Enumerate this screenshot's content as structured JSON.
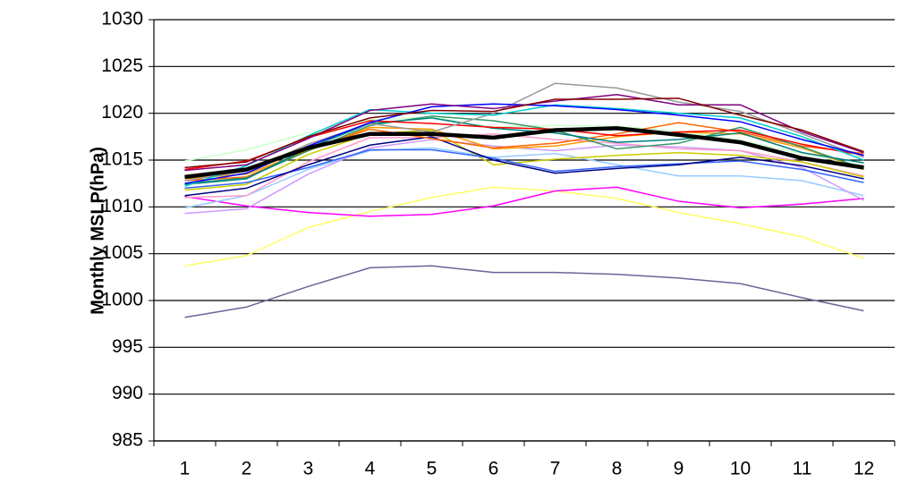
{
  "chart_data": {
    "type": "line",
    "y_label": "Monthly MSLP(hPa)",
    "categories": [
      "1",
      "2",
      "3",
      "4",
      "5",
      "6",
      "7",
      "8",
      "9",
      "10",
      "11",
      "12"
    ],
    "ylim": [
      985,
      1030
    ],
    "yticks": [
      985,
      990,
      995,
      1000,
      1005,
      1010,
      1015,
      1020,
      1025,
      1030
    ],
    "grid": true,
    "series": [
      {
        "color": "#666699",
        "width": 1.5,
        "values": [
          998.2,
          999.3,
          1001.5,
          1003.5,
          1003.7,
          1003.0,
          1003.0,
          1002.8,
          1002.4,
          1001.8,
          1000.3,
          998.9
        ]
      },
      {
        "color": "#ffff66",
        "width": 1.5,
        "values": [
          1003.7,
          1004.8,
          1007.8,
          1009.5,
          1011.0,
          1012.1,
          1011.7,
          1010.9,
          1009.4,
          1008.2,
          1006.8,
          1004.5
        ]
      },
      {
        "color": "#ff00ff",
        "width": 1.5,
        "values": [
          1011.1,
          1010.1,
          1009.4,
          1009.0,
          1009.2,
          1010.1,
          1011.7,
          1012.1,
          1010.6,
          1009.9,
          1010.3,
          1010.9
        ]
      },
      {
        "color": "#ccffcc",
        "width": 1.5,
        "values": [
          1014.9,
          1016.1,
          1017.9,
          1019.3,
          1019.6,
          1018.5,
          1018.7,
          1018.6,
          1018.1,
          1017.1,
          1015.7,
          1014.4
        ]
      },
      {
        "color": "#99ccff",
        "width": 1.5,
        "values": [
          1009.9,
          1011.2,
          1014.0,
          1016.0,
          1016.3,
          1015.3,
          1015.7,
          1014.5,
          1013.3,
          1013.3,
          1012.8,
          1011.2
        ]
      },
      {
        "color": "#cc99ff",
        "width": 1.5,
        "values": [
          1009.3,
          1009.8,
          1013.5,
          1016.3,
          1017.2,
          1016.5,
          1016.0,
          1016.6,
          1016.4,
          1016.0,
          1014.2,
          1010.7
        ]
      },
      {
        "color": "#ff99cc",
        "width": 1.5,
        "values": [
          1011.0,
          1011.2,
          1014.8,
          1017.4,
          1017.4,
          1017.8,
          1017.2,
          1016.8,
          1016.2,
          1016.0,
          1014.8,
          1013.3
        ]
      },
      {
        "color": "#cccc00",
        "width": 1.5,
        "values": [
          1011.8,
          1012.4,
          1015.6,
          1017.8,
          1018.2,
          1014.5,
          1015.1,
          1015.5,
          1015.8,
          1015.5,
          1014.8,
          1013.2
        ]
      },
      {
        "color": "#3366ff",
        "width": 1.5,
        "values": [
          1012.0,
          1012.6,
          1014.2,
          1016.1,
          1016.1,
          1015.2,
          1013.8,
          1014.3,
          1014.6,
          1014.9,
          1014.0,
          1012.6
        ]
      },
      {
        "color": "#000080",
        "width": 1.5,
        "values": [
          1011.2,
          1012.0,
          1014.5,
          1016.6,
          1017.5,
          1015.0,
          1013.6,
          1014.1,
          1014.5,
          1015.3,
          1014.4,
          1013.0
        ]
      },
      {
        "color": "#ff9900",
        "width": 1.5,
        "values": [
          1013.0,
          1013.5,
          1016.0,
          1018.5,
          1018.3,
          1016.2,
          1016.5,
          1017.5,
          1018.0,
          1017.8,
          1016.3,
          1014.0
        ]
      },
      {
        "color": "#ff6600",
        "width": 1.5,
        "values": [
          1012.8,
          1013.2,
          1016.1,
          1018.3,
          1017.3,
          1016.3,
          1016.8,
          1017.8,
          1019.0,
          1018.0,
          1016.5,
          1015.7
        ]
      },
      {
        "color": "#339966",
        "width": 1.5,
        "values": [
          1012.5,
          1013.1,
          1016.0,
          1018.7,
          1019.7,
          1019.2,
          1018.2,
          1016.2,
          1016.8,
          1018.5,
          1016.4,
          1014.1
        ]
      },
      {
        "color": "#008080",
        "width": 1.5,
        "values": [
          1012.4,
          1013.0,
          1016.3,
          1018.9,
          1019.5,
          1018.4,
          1017.9,
          1016.9,
          1017.2,
          1017.9,
          1015.8,
          1014.7
        ]
      },
      {
        "color": "#ff0000",
        "width": 1.5,
        "values": [
          1014.0,
          1014.9,
          1017.4,
          1019.2,
          1018.9,
          1018.5,
          1018.3,
          1017.6,
          1018.0,
          1018.2,
          1016.7,
          1015.5
        ]
      },
      {
        "color": "#999999",
        "width": 1.5,
        "values": [
          1012.8,
          1013.8,
          1016.7,
          1018.9,
          1018.0,
          1020.0,
          1023.2,
          1022.7,
          1021.2,
          1020.2,
          1017.8,
          1015.3
        ]
      },
      {
        "color": "#00cccc",
        "width": 1.5,
        "values": [
          1012.2,
          1014.4,
          1017.6,
          1020.4,
          1020.0,
          1019.8,
          1020.9,
          1020.5,
          1020.0,
          1019.5,
          1017.5,
          1015.0
        ]
      },
      {
        "color": "#0000ff",
        "width": 1.5,
        "values": [
          1012.5,
          1013.6,
          1016.5,
          1019.0,
          1020.7,
          1021.0,
          1020.8,
          1020.4,
          1019.8,
          1019.1,
          1017.2,
          1015.5
        ]
      },
      {
        "color": "#800080",
        "width": 1.5,
        "values": [
          1013.9,
          1014.5,
          1017.3,
          1020.3,
          1021.0,
          1020.5,
          1021.3,
          1022.0,
          1020.9,
          1020.9,
          1018.0,
          1015.8
        ]
      },
      {
        "color": "#800000",
        "width": 1.5,
        "values": [
          1014.2,
          1014.8,
          1017.5,
          1019.5,
          1020.3,
          1020.2,
          1021.5,
          1021.5,
          1021.6,
          1019.8,
          1018.2,
          1015.9
        ]
      },
      {
        "color": "#000000",
        "width": 4.5,
        "values": [
          1013.2,
          1014.0,
          1016.3,
          1017.8,
          1017.8,
          1017.4,
          1018.2,
          1018.4,
          1017.7,
          1016.9,
          1015.2,
          1014.2
        ]
      }
    ]
  }
}
